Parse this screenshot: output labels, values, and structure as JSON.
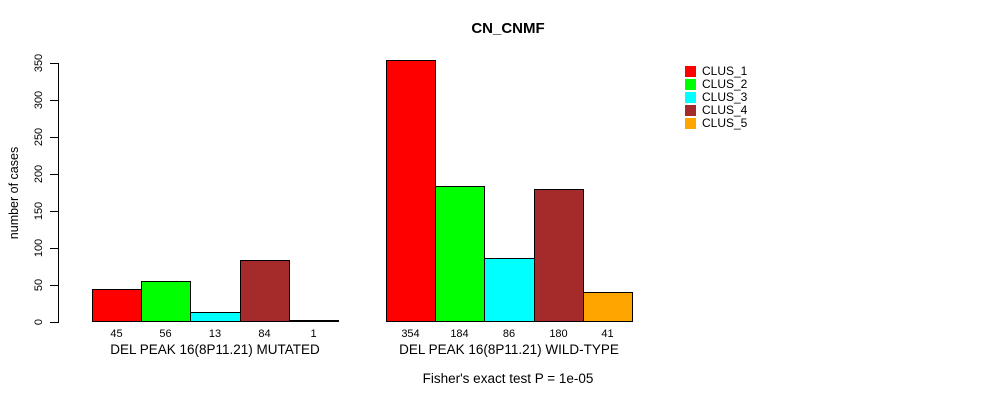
{
  "title": "CN_CNMF",
  "ylabel": "number of cases",
  "footer": "Fisher's exact test P = 1e-05",
  "legend": {
    "entries": [
      {
        "label": "CLUS_1",
        "color": "#FF0000"
      },
      {
        "label": "CLUS_2",
        "color": "#00FF00"
      },
      {
        "label": "CLUS_3",
        "color": "#00FFFF"
      },
      {
        "label": "CLUS_4",
        "color": "#A52A2A"
      },
      {
        "label": "CLUS_5",
        "color": "#FFA500"
      }
    ]
  },
  "chart_data": {
    "type": "bar",
    "title": "CN_CNMF",
    "xlabel": "",
    "ylabel": "number of cases",
    "ylim": [
      0,
      350
    ],
    "yticks": [
      0,
      50,
      100,
      150,
      200,
      250,
      300,
      350
    ],
    "grid": false,
    "legend_position": "right",
    "series": [
      "CLUS_1",
      "CLUS_2",
      "CLUS_3",
      "CLUS_4",
      "CLUS_5"
    ],
    "colors": [
      "#FF0000",
      "#00FF00",
      "#00FFFF",
      "#A52A2A",
      "#FFA500"
    ],
    "groups": [
      {
        "label": "DEL PEAK 16(8P11.21) MUTATED",
        "values": [
          45,
          56,
          13,
          84,
          1
        ]
      },
      {
        "label": "DEL PEAK 16(8P11.21) WILD-TYPE",
        "values": [
          354,
          184,
          86,
          180,
          41
        ]
      }
    ],
    "bar_value_labels_shown": true,
    "annotation": "Fisher's exact test P = 1e-05"
  }
}
